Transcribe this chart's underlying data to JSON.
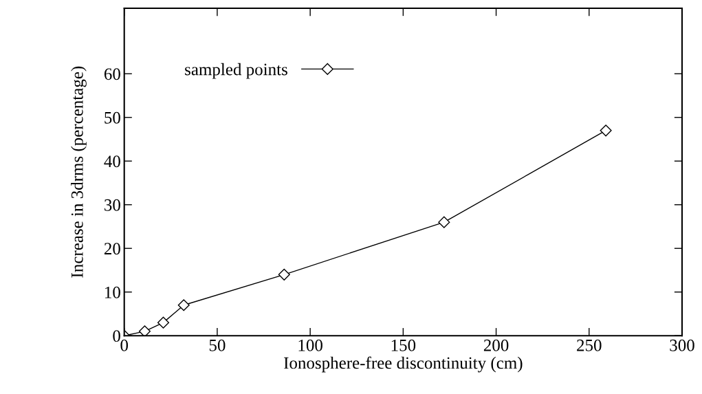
{
  "chart_data": {
    "type": "line",
    "xlabel": "Ionosphere-free discontinuity (cm)",
    "ylabel": "Increase in 3drms (percentage)",
    "x": [
      0,
      11,
      21,
      32,
      86,
      172,
      259
    ],
    "series": [
      {
        "name": "sampled points",
        "color": "#000000",
        "values": [
          0,
          1,
          3,
          7,
          14,
          26,
          47
        ]
      }
    ],
    "xlim": [
      0,
      300
    ],
    "ylim": [
      0,
      75
    ],
    "xticks": [
      0,
      50,
      100,
      150,
      200,
      250,
      300
    ],
    "yticks": [
      0,
      10,
      20,
      30,
      40,
      50,
      60
    ],
    "marker": "diamond",
    "line_style": "solid",
    "legend": "top left",
    "grid": false
  }
}
